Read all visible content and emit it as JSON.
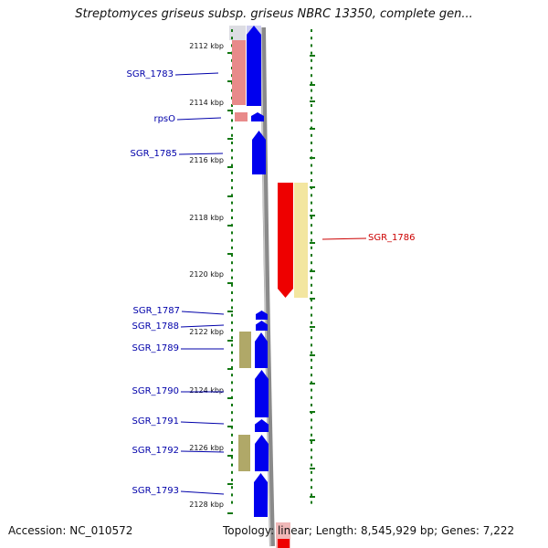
{
  "title": "Streptomyces griseus subsp. griseus NBRC 13350, complete gen...",
  "footer": {
    "accession": "Accession: NC_010572",
    "summary": "Topology: linear; Length: 8,545,929 bp; Genes: 7,222"
  },
  "ruler": {
    "unit": "kbp",
    "ticks": [
      "2112 kbp",
      "2114 kbp",
      "2116 kbp",
      "2118 kbp",
      "2120 kbp",
      "2122 kbp",
      "2124 kbp",
      "2126 kbp",
      "2128 kbp"
    ]
  },
  "colors": {
    "forward_gene": "#0000ee",
    "reverse_gene": "#ee0000",
    "forward_label": "#0000aa",
    "reverse_label": "#cc0000",
    "ruler_tick": "#117711",
    "reverse_band": "#f3e6a0",
    "forward_band": "#b0a868",
    "pink_band": "#e88a8a",
    "genome_track": "#999999"
  },
  "genes": [
    {
      "id": "SGR_1783",
      "strand": "forward"
    },
    {
      "id": "rpsO",
      "strand": "forward"
    },
    {
      "id": "SGR_1785",
      "strand": "forward"
    },
    {
      "id": "SGR_1786",
      "strand": "reverse"
    },
    {
      "id": "SGR_1787",
      "strand": "forward"
    },
    {
      "id": "SGR_1788",
      "strand": "forward"
    },
    {
      "id": "SGR_1789",
      "strand": "forward"
    },
    {
      "id": "SGR_1790",
      "strand": "forward"
    },
    {
      "id": "SGR_1791",
      "strand": "forward"
    },
    {
      "id": "SGR_1792",
      "strand": "forward"
    },
    {
      "id": "SGR_1793",
      "strand": "forward"
    }
  ]
}
